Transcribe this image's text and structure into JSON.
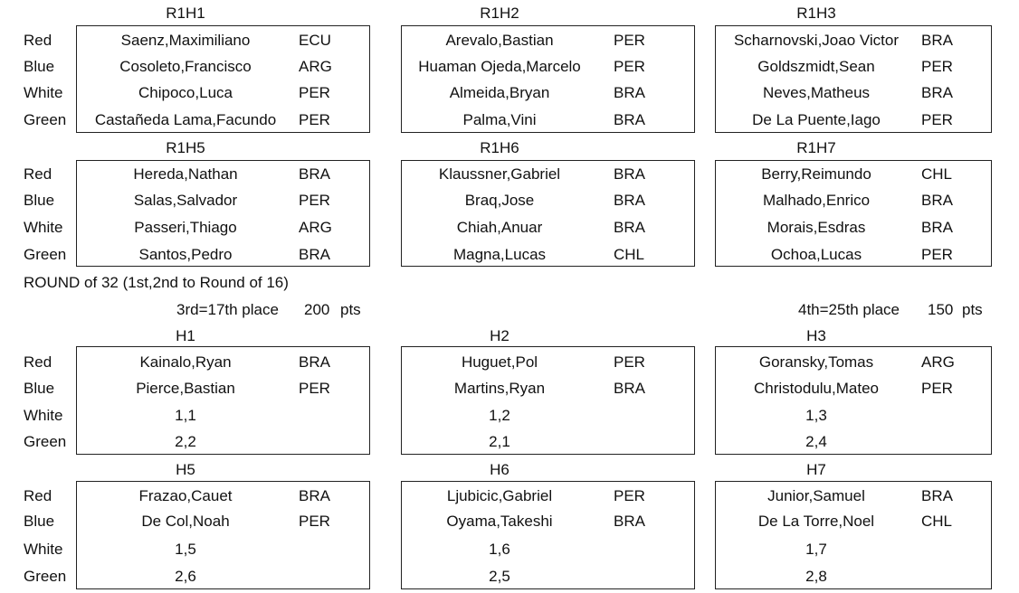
{
  "colors": {
    "text": "#111111",
    "border": "#222222",
    "background": "#ffffff"
  },
  "lanes": [
    "Red",
    "Blue",
    "White",
    "Green"
  ],
  "round1": {
    "heats": [
      {
        "title": "R1H1",
        "entries": [
          {
            "name": "Saenz,Maximiliano",
            "country": "ECU"
          },
          {
            "name": "Cosoleto,Francisco",
            "country": "ARG"
          },
          {
            "name": "Chipoco,Luca",
            "country": "PER"
          },
          {
            "name": "Castañeda Lama,Facundo",
            "country": "PER"
          }
        ]
      },
      {
        "title": "R1H2",
        "entries": [
          {
            "name": "Arevalo,Bastian",
            "country": "PER"
          },
          {
            "name": "Huaman Ojeda,Marcelo",
            "country": "PER"
          },
          {
            "name": "Almeida,Bryan",
            "country": "BRA"
          },
          {
            "name": "Palma,Vini",
            "country": "BRA"
          }
        ]
      },
      {
        "title": "R1H3",
        "entries": [
          {
            "name": "Scharnovski,Joao Victor",
            "country": "BRA"
          },
          {
            "name": "Goldszmidt,Sean",
            "country": "PER"
          },
          {
            "name": "Neves,Matheus",
            "country": "BRA"
          },
          {
            "name": "De La Puente,Iago",
            "country": "PER"
          }
        ]
      },
      {
        "title": "R1H5",
        "entries": [
          {
            "name": "Hereda,Nathan",
            "country": "BRA"
          },
          {
            "name": "Salas,Salvador",
            "country": "PER"
          },
          {
            "name": "Passeri,Thiago",
            "country": "ARG"
          },
          {
            "name": "Santos,Pedro",
            "country": "BRA"
          }
        ]
      },
      {
        "title": "R1H6",
        "entries": [
          {
            "name": "Klaussner,Gabriel",
            "country": "BRA"
          },
          {
            "name": "Braq,Jose",
            "country": "BRA"
          },
          {
            "name": "Chiah,Anuar",
            "country": "BRA"
          },
          {
            "name": "Magna,Lucas",
            "country": "CHL"
          }
        ]
      },
      {
        "title": "R1H7",
        "entries": [
          {
            "name": "Berry,Reimundo",
            "country": "CHL"
          },
          {
            "name": "Malhado,Enrico",
            "country": "BRA"
          },
          {
            "name": "Morais,Esdras",
            "country": "BRA"
          },
          {
            "name": "Ochoa,Lucas",
            "country": "PER"
          }
        ]
      }
    ]
  },
  "round_of_32": {
    "title": "ROUND of 32 (1st,2nd to Round of 16)",
    "third_place": "3rd=17th place",
    "third_points": "200",
    "fourth_place": "4th=25th place",
    "fourth_points": "150",
    "pts_label": "pts",
    "heats": [
      {
        "title": "H1",
        "entries": [
          {
            "name": "Kainalo,Ryan",
            "country": "BRA"
          },
          {
            "name": "Pierce,Bastian",
            "country": "PER"
          },
          {
            "name": "1,1",
            "country": ""
          },
          {
            "name": "2,2",
            "country": ""
          }
        ]
      },
      {
        "title": "H2",
        "entries": [
          {
            "name": "Huguet,Pol",
            "country": "PER"
          },
          {
            "name": "Martins,Ryan",
            "country": "BRA"
          },
          {
            "name": "1,2",
            "country": ""
          },
          {
            "name": "2,1",
            "country": ""
          }
        ]
      },
      {
        "title": "H3",
        "entries": [
          {
            "name": "Goransky,Tomas",
            "country": "ARG"
          },
          {
            "name": "Christodulu,Mateo",
            "country": "PER"
          },
          {
            "name": "1,3",
            "country": ""
          },
          {
            "name": "2,4",
            "country": ""
          }
        ]
      },
      {
        "title": "H5",
        "entries": [
          {
            "name": "Frazao,Cauet",
            "country": "BRA"
          },
          {
            "name": "De Col,Noah",
            "country": "PER"
          },
          {
            "name": "1,5",
            "country": ""
          },
          {
            "name": "2,6",
            "country": ""
          }
        ]
      },
      {
        "title": "H6",
        "entries": [
          {
            "name": "Ljubicic,Gabriel",
            "country": "PER"
          },
          {
            "name": "Oyama,Takeshi",
            "country": "BRA"
          },
          {
            "name": "1,6",
            "country": ""
          },
          {
            "name": "2,5",
            "country": ""
          }
        ]
      },
      {
        "title": "H7",
        "entries": [
          {
            "name": "Junior,Samuel",
            "country": "BRA"
          },
          {
            "name": "De La Torre,Noel",
            "country": "CHL"
          },
          {
            "name": "1,7",
            "country": ""
          },
          {
            "name": "2,8",
            "country": ""
          }
        ]
      }
    ]
  }
}
